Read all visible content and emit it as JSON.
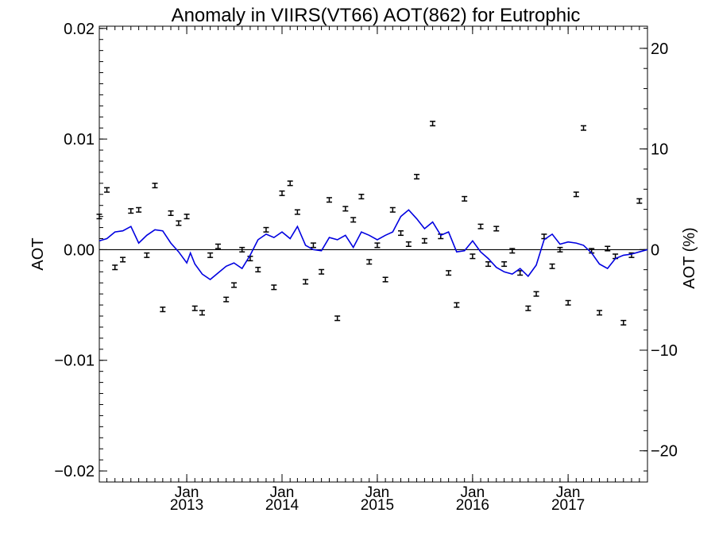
{
  "chart_data": {
    "type": "scatter",
    "title": "Anomaly in VIIRS(VT66) AOT(862) for Eutrophic",
    "ylabel": "AOT",
    "y2label": "AOT (%)",
    "xlabel": "",
    "ylim": [
      -0.021,
      0.0202
    ],
    "y2lim": [
      -23.1,
      22.2
    ],
    "yticks": [
      {
        "value": 0.02,
        "label": "0.02"
      },
      {
        "value": 0.01,
        "label": "0.01"
      },
      {
        "value": 0.0,
        "label": "0.00"
      },
      {
        "value": -0.01,
        "label": "−0.01"
      },
      {
        "value": -0.02,
        "label": "−0.02"
      }
    ],
    "y2ticks": [
      {
        "value": 20,
        "label": "20"
      },
      {
        "value": 10,
        "label": "10"
      },
      {
        "value": 0,
        "label": "0"
      },
      {
        "value": -10,
        "label": "−10"
      },
      {
        "value": -20,
        "label": "−20"
      }
    ],
    "xlim": [
      "2012-02-01",
      "2017-11-01"
    ],
    "xticks": [
      {
        "date": "2013-01-01",
        "month": "Jan",
        "year": "2013"
      },
      {
        "date": "2014-01-01",
        "month": "Jan",
        "year": "2014"
      },
      {
        "date": "2015-01-01",
        "month": "Jan",
        "year": "2015"
      },
      {
        "date": "2016-01-01",
        "month": "Jan",
        "year": "2016"
      },
      {
        "date": "2017-01-01",
        "month": "Jan",
        "year": "2017"
      }
    ],
    "zero_line": true,
    "grid": false,
    "legend": "none",
    "series": [
      {
        "kind": "monthly anomaly with error bars",
        "color": "#000000",
        "error": 0.0002,
        "points": [
          [
            "2012-02-01",
            0.003
          ],
          [
            "2012-03-01",
            0.0054
          ],
          [
            "2012-04-01",
            -0.0016
          ],
          [
            "2012-05-01",
            -0.0009
          ],
          [
            "2012-06-01",
            0.0035
          ],
          [
            "2012-07-01",
            0.0036
          ],
          [
            "2012-08-01",
            -0.0005
          ],
          [
            "2012-09-01",
            0.0058
          ],
          [
            "2012-10-01",
            -0.0054
          ],
          [
            "2012-11-01",
            0.0033
          ],
          [
            "2012-12-01",
            0.0024
          ],
          [
            "2013-01-01",
            0.003
          ],
          [
            "2013-02-01",
            -0.0053
          ],
          [
            "2013-03-01",
            -0.0057
          ],
          [
            "2013-04-01",
            -0.0005
          ],
          [
            "2013-05-01",
            0.0003
          ],
          [
            "2013-06-01",
            -0.0045
          ],
          [
            "2013-07-01",
            -0.0032
          ],
          [
            "2013-08-01",
            0.0
          ],
          [
            "2013-09-01",
            -0.0008
          ],
          [
            "2013-10-01",
            -0.0018
          ],
          [
            "2013-11-01",
            0.0018
          ],
          [
            "2013-12-01",
            -0.0034
          ],
          [
            "2014-01-01",
            0.0051
          ],
          [
            "2014-02-01",
            0.006
          ],
          [
            "2014-03-01",
            0.0034
          ],
          [
            "2014-04-01",
            -0.0029
          ],
          [
            "2014-05-01",
            0.0004
          ],
          [
            "2014-06-01",
            -0.002
          ],
          [
            "2014-07-01",
            0.0045
          ],
          [
            "2014-08-01",
            -0.0062
          ],
          [
            "2014-09-01",
            0.0037
          ],
          [
            "2014-10-01",
            0.0027
          ],
          [
            "2014-11-01",
            0.0048
          ],
          [
            "2014-12-01",
            -0.0011
          ],
          [
            "2015-01-01",
            0.0004
          ],
          [
            "2015-02-01",
            -0.0027
          ],
          [
            "2015-03-01",
            0.0036
          ],
          [
            "2015-04-01",
            0.0015
          ],
          [
            "2015-05-01",
            0.0005
          ],
          [
            "2015-06-01",
            0.0066
          ],
          [
            "2015-07-01",
            0.0008
          ],
          [
            "2015-08-01",
            0.0114
          ],
          [
            "2015-09-01",
            0.0012
          ],
          [
            "2015-10-01",
            -0.0021
          ],
          [
            "2015-11-01",
            -0.005
          ],
          [
            "2015-12-01",
            0.0046
          ],
          [
            "2016-01-01",
            -0.0006
          ],
          [
            "2016-02-01",
            0.0021
          ],
          [
            "2016-03-01",
            -0.0013
          ],
          [
            "2016-04-01",
            0.0019
          ],
          [
            "2016-05-01",
            -0.0013
          ],
          [
            "2016-06-01",
            -0.0001
          ],
          [
            "2016-07-01",
            -0.0021
          ],
          [
            "2016-08-01",
            -0.0053
          ],
          [
            "2016-09-01",
            -0.004
          ],
          [
            "2016-10-01",
            0.0012
          ],
          [
            "2016-11-01",
            -0.0015
          ],
          [
            "2016-12-01",
            0.0
          ],
          [
            "2017-01-01",
            -0.0048
          ],
          [
            "2017-02-01",
            0.005
          ],
          [
            "2017-03-01",
            0.011
          ],
          [
            "2017-04-01",
            -0.0001
          ],
          [
            "2017-05-01",
            -0.0057
          ],
          [
            "2017-06-01",
            0.0001
          ],
          [
            "2017-07-01",
            -0.0006
          ],
          [
            "2017-08-01",
            -0.0066
          ],
          [
            "2017-09-01",
            -0.0005
          ],
          [
            "2017-10-01",
            0.0044
          ]
        ]
      },
      {
        "kind": "smoothed line",
        "color": "#0000e0",
        "points": [
          [
            "2012-02-01",
            0.0008
          ],
          [
            "2012-03-01",
            0.001
          ],
          [
            "2012-04-01",
            0.0016
          ],
          [
            "2012-05-01",
            0.0017
          ],
          [
            "2012-06-01",
            0.0021
          ],
          [
            "2012-07-01",
            0.0006
          ],
          [
            "2012-08-01",
            0.0013
          ],
          [
            "2012-09-01",
            0.0018
          ],
          [
            "2012-10-01",
            0.0017
          ],
          [
            "2012-11-01",
            0.0006
          ],
          [
            "2012-12-01",
            -0.0002
          ],
          [
            "2013-01-01",
            -0.0012
          ],
          [
            "2013-01-15",
            -0.0003
          ],
          [
            "2013-02-01",
            -0.0013
          ],
          [
            "2013-03-01",
            -0.0022
          ],
          [
            "2013-04-01",
            -0.0027
          ],
          [
            "2013-05-01",
            -0.0021
          ],
          [
            "2013-06-01",
            -0.0015
          ],
          [
            "2013-07-01",
            -0.0012
          ],
          [
            "2013-08-01",
            -0.0017
          ],
          [
            "2013-09-01",
            -0.0005
          ],
          [
            "2013-10-01",
            0.0009
          ],
          [
            "2013-11-01",
            0.0014
          ],
          [
            "2013-12-01",
            0.0011
          ],
          [
            "2014-01-01",
            0.0016
          ],
          [
            "2014-02-01",
            0.001
          ],
          [
            "2014-03-01",
            0.0021
          ],
          [
            "2014-04-01",
            0.0004
          ],
          [
            "2014-05-01",
            0.0
          ],
          [
            "2014-06-01",
            -0.0001
          ],
          [
            "2014-07-01",
            0.0011
          ],
          [
            "2014-08-01",
            0.0009
          ],
          [
            "2014-09-01",
            0.0013
          ],
          [
            "2014-10-01",
            0.0002
          ],
          [
            "2014-11-01",
            0.0016
          ],
          [
            "2014-12-01",
            0.0013
          ],
          [
            "2015-01-01",
            0.0009
          ],
          [
            "2015-02-01",
            0.0013
          ],
          [
            "2015-03-01",
            0.0016
          ],
          [
            "2015-04-01",
            0.003
          ],
          [
            "2015-05-01",
            0.0036
          ],
          [
            "2015-06-01",
            0.0028
          ],
          [
            "2015-07-01",
            0.0019
          ],
          [
            "2015-08-01",
            0.0025
          ],
          [
            "2015-09-01",
            0.0013
          ],
          [
            "2015-10-01",
            0.0016
          ],
          [
            "2015-11-01",
            -0.0002
          ],
          [
            "2015-12-01",
            -0.0001
          ],
          [
            "2016-01-01",
            0.0008
          ],
          [
            "2016-02-01",
            -0.0002
          ],
          [
            "2016-03-01",
            -0.0008
          ],
          [
            "2016-04-01",
            -0.0016
          ],
          [
            "2016-05-01",
            -0.002
          ],
          [
            "2016-06-01",
            -0.0022
          ],
          [
            "2016-07-01",
            -0.0017
          ],
          [
            "2016-08-01",
            -0.0024
          ],
          [
            "2016-09-01",
            -0.0014
          ],
          [
            "2016-10-01",
            0.0009
          ],
          [
            "2016-11-01",
            0.0014
          ],
          [
            "2016-12-01",
            0.0005
          ],
          [
            "2017-01-01",
            0.0007
          ],
          [
            "2017-02-01",
            0.0006
          ],
          [
            "2017-03-01",
            0.0004
          ],
          [
            "2017-04-01",
            -0.0003
          ],
          [
            "2017-05-01",
            -0.0013
          ],
          [
            "2017-06-01",
            -0.0017
          ],
          [
            "2017-07-01",
            -0.0008
          ],
          [
            "2017-08-01",
            -0.0005
          ],
          [
            "2017-09-01",
            -0.0004
          ],
          [
            "2017-10-01",
            -0.0002
          ],
          [
            "2017-11-01",
            0.0
          ]
        ]
      }
    ]
  }
}
